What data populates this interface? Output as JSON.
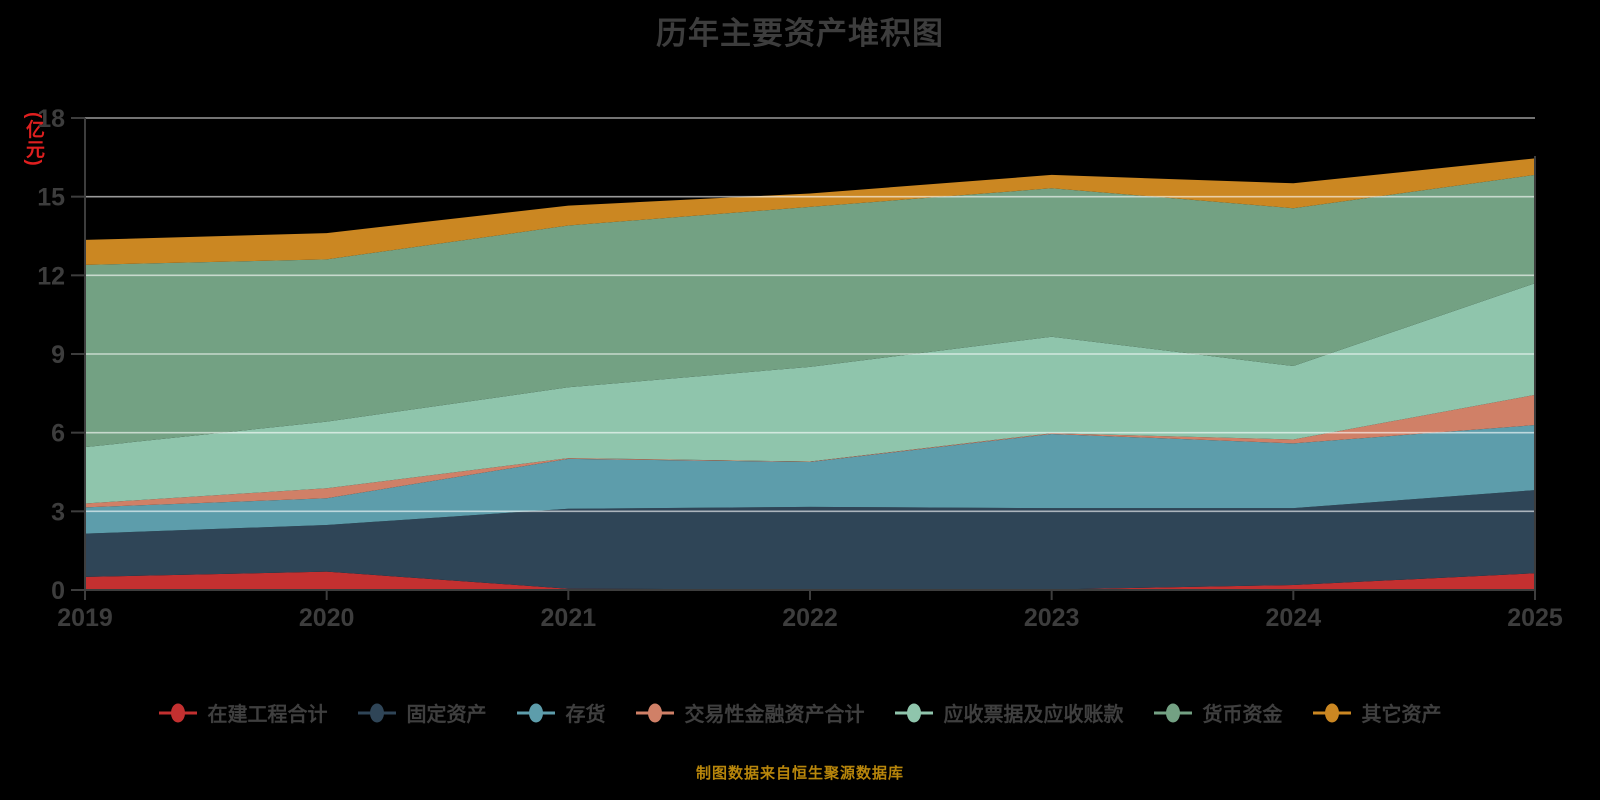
{
  "title": "历年主要资产堆积图",
  "footer": "制图数据来自恒生聚源数据库",
  "colors": {
    "background": "#000000",
    "title_text": "#3d3d3d",
    "axis_text": "#3d3d3d",
    "ylabel_text": "#e01f1f",
    "footer_text": "#b8860b",
    "legend_text": "#3f3f3f"
  },
  "axis": {
    "spine_color": "#3d3d3d",
    "tick_color": "#3d3d3d",
    "grid_color": "rgba(255,255,255,0.6)"
  },
  "chart_data": {
    "type": "area",
    "stacked": true,
    "title": "历年主要资产堆积图",
    "xlabel": "",
    "ylabel": "(亿元)",
    "categories": [
      "2019",
      "2020",
      "2021",
      "2022",
      "2023",
      "2024",
      "2025"
    ],
    "y_ticks": [
      0,
      3,
      6,
      9,
      12,
      15,
      18
    ],
    "ylim": [
      0,
      18
    ],
    "grid": true,
    "legend_position": "bottom",
    "series": [
      {
        "name": "在建工程合计",
        "color": "#c33030",
        "values": [
          0.5,
          0.7,
          0.05,
          0.02,
          0.02,
          0.19,
          0.64
        ]
      },
      {
        "name": "固定资产",
        "color": "#2f4557",
        "values": [
          1.65,
          1.78,
          3.05,
          3.15,
          3.1,
          2.93,
          3.17
        ]
      },
      {
        "name": "存货",
        "color": "#5d9dab",
        "values": [
          1.0,
          1.02,
          1.9,
          1.71,
          2.83,
          2.47,
          2.48
        ]
      },
      {
        "name": "交易性金融资产合计",
        "color": "#d08067",
        "values": [
          0.15,
          0.38,
          0.03,
          0.02,
          0.03,
          0.15,
          1.15
        ]
      },
      {
        "name": "应收票据及应收账款",
        "color": "#8fc5ac",
        "values": [
          2.15,
          2.54,
          2.7,
          3.61,
          3.68,
          2.8,
          4.26
        ]
      },
      {
        "name": "货币资金",
        "color": "#73a183",
        "values": [
          6.95,
          6.19,
          6.17,
          6.1,
          5.66,
          6.02,
          4.13
        ]
      },
      {
        "name": "其它资产",
        "color": "#cb8722",
        "values": [
          0.95,
          1.0,
          0.76,
          0.51,
          0.51,
          0.95,
          0.63
        ]
      }
    ]
  }
}
